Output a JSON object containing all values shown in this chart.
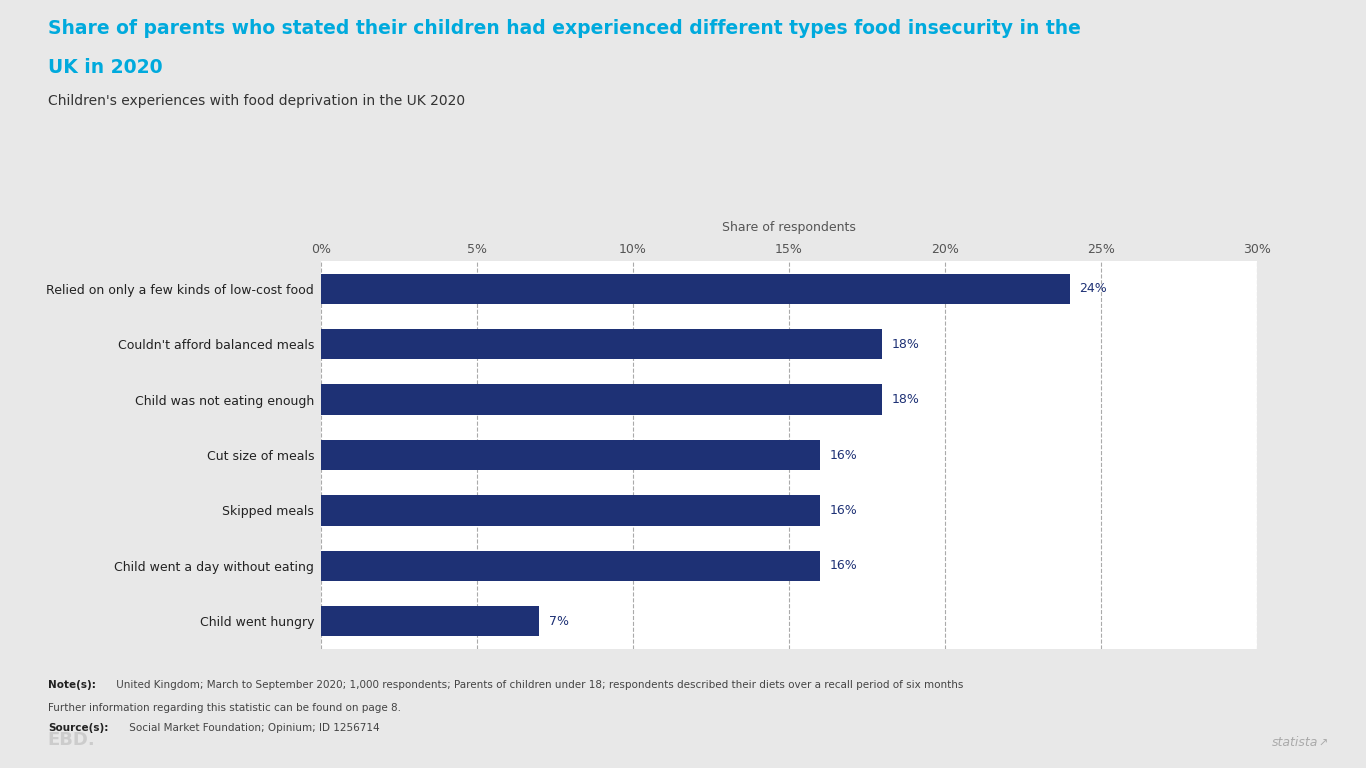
{
  "title_line1": "Share of parents who stated their children had experienced different types food insecurity in the",
  "title_line2": "UK in 2020",
  "subtitle": "Children's experiences with food deprivation in the UK 2020",
  "xlabel": "Share of respondents",
  "categories": [
    "Relied on only a few kinds of low-cost food",
    "Couldn't afford balanced meals",
    "Child was not eating enough",
    "Cut size of meals",
    "Skipped meals",
    "Child went a day without eating",
    "Child went hungry"
  ],
  "values": [
    24,
    18,
    18,
    16,
    16,
    16,
    7
  ],
  "bar_color": "#1e3175",
  "title_color": "#00aadd",
  "subtitle_color": "#333333",
  "outer_background": "#e8e8e8",
  "card_background": "#ffffff",
  "xlim": [
    0,
    30
  ],
  "xticks": [
    0,
    5,
    10,
    15,
    20,
    25,
    30
  ],
  "xtick_labels": [
    "0%",
    "5%",
    "10%",
    "15%",
    "20%",
    "25%",
    "30%"
  ],
  "note_bold": "Note(s):",
  "note_text": " United Kingdom; March to September 2020; 1,000 respondents; Parents of children under 18; respondents described their diets over a recall period of six months",
  "further_bold": "",
  "further_text": "Further information regarding this statistic can be found on page 8.",
  "source_bold": "Source(s):",
  "source_text": " Social Market Foundation; Opinium; ID 1256714",
  "label_color": "#1e3175",
  "tick_label_color": "#555555",
  "grid_color": "#aaaaaa",
  "bar_height": 0.55,
  "statista_text": "statista",
  "ebd_text": "EBD."
}
